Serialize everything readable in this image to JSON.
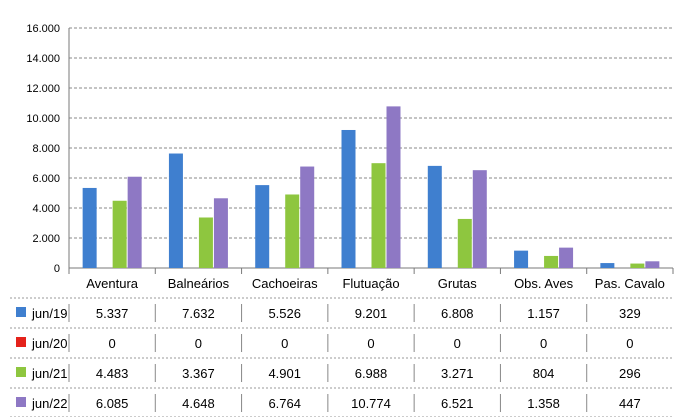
{
  "chart_data": {
    "type": "bar",
    "categories": [
      "Aventura",
      "Balneários",
      "Cachoeiras",
      "Flutuação",
      "Grutas",
      "Obs. Aves",
      "Pas. Cavalo"
    ],
    "series": [
      {
        "name": "jun/19",
        "color": "#3f7fcf",
        "values": [
          5337,
          7632,
          5526,
          9201,
          6808,
          1157,
          329
        ],
        "labels": [
          "5.337",
          "7.632",
          "5.526",
          "9.201",
          "6.808",
          "1.157",
          "329"
        ]
      },
      {
        "name": "jun/20",
        "color": "#e4221b",
        "values": [
          0,
          0,
          0,
          0,
          0,
          0,
          0
        ],
        "labels": [
          "0",
          "0",
          "0",
          "0",
          "0",
          "0",
          "0"
        ]
      },
      {
        "name": "jun/21",
        "color": "#8ec63f",
        "values": [
          4483,
          3367,
          4901,
          6988,
          3271,
          804,
          296
        ],
        "labels": [
          "4.483",
          "3.367",
          "4.901",
          "6.988",
          "3.271",
          "804",
          "296"
        ]
      },
      {
        "name": "jun/22",
        "color": "#8e78c4",
        "values": [
          6085,
          4648,
          6764,
          10774,
          6521,
          1358,
          447
        ],
        "labels": [
          "6.085",
          "4.648",
          "6.764",
          "10.774",
          "6.521",
          "1.358",
          "447"
        ]
      }
    ],
    "ylim": [
      0,
      16000
    ],
    "yticks": [
      0,
      2000,
      4000,
      6000,
      8000,
      10000,
      12000,
      14000,
      16000
    ],
    "ytick_labels": [
      "0",
      "2.000",
      "4.000",
      "6.000",
      "8.000",
      "10.000",
      "12.000",
      "14.000",
      "16.000"
    ],
    "grid": "horizontal dashed",
    "legend": "data-table-left"
  }
}
